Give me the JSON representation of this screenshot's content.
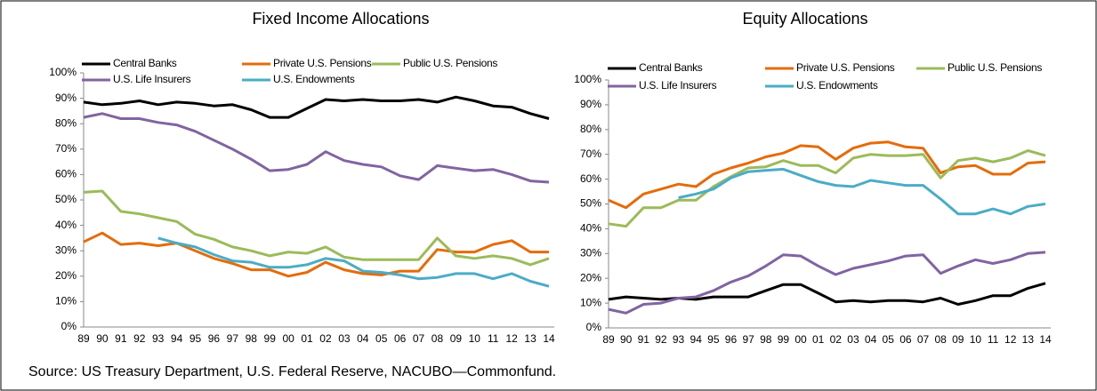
{
  "chart_data": [
    {
      "type": "line",
      "title": "Fixed Income Allocations",
      "categories": [
        "89",
        "90",
        "91",
        "92",
        "93",
        "94",
        "95",
        "96",
        "97",
        "98",
        "99",
        "00",
        "01",
        "02",
        "03",
        "04",
        "05",
        "06",
        "07",
        "08",
        "09",
        "10",
        "11",
        "12",
        "13",
        "14"
      ],
      "ylim": [
        0,
        100
      ],
      "yticks": [
        {
          "value": 0,
          "label": "0%"
        },
        {
          "value": 10,
          "label": "10%"
        },
        {
          "value": 20,
          "label": "20%"
        },
        {
          "value": 30,
          "label": "30%"
        },
        {
          "value": 40,
          "label": "40%"
        },
        {
          "value": 50,
          "label": "50%"
        },
        {
          "value": 60,
          "label": "60%"
        },
        {
          "value": 70,
          "label": "70%"
        },
        {
          "value": 80,
          "label": "80%"
        },
        {
          "value": 90,
          "label": "90%"
        },
        {
          "value": 100,
          "label": "100%"
        }
      ],
      "series": [
        {
          "name": "Central Banks",
          "color": "#000000",
          "values": [
            88.5,
            87.5,
            88,
            89,
            87.5,
            88.5,
            88,
            87,
            87.5,
            85.5,
            82.5,
            82.5,
            86,
            89.5,
            89,
            89.5,
            89,
            89,
            89.5,
            88.5,
            90.5,
            89,
            87,
            86.5,
            84,
            82
          ]
        },
        {
          "name": "Private U.S. Pensions",
          "color": "#e46c0a",
          "values": [
            33.5,
            37,
            32.5,
            33,
            32,
            33,
            30,
            27,
            25,
            22.5,
            22.5,
            20,
            21.5,
            25.5,
            22.5,
            21,
            20.5,
            22,
            22,
            30.5,
            29.5,
            29.5,
            32.5,
            34,
            29.5,
            29.5
          ]
        },
        {
          "name": "Public U.S. Pensions",
          "color": "#9bbb59",
          "values": [
            53,
            53.5,
            45.5,
            44.5,
            43,
            41.5,
            36.5,
            34.5,
            31.5,
            30,
            28,
            29.5,
            29,
            31.5,
            27.5,
            26.5,
            26.5,
            26.5,
            26.5,
            35,
            28,
            27,
            28,
            27,
            24.5,
            27
          ]
        },
        {
          "name": "U.S. Life Insurers",
          "color": "#8064a2",
          "values": [
            82.5,
            84,
            82,
            82,
            80.5,
            79.5,
            77,
            73.5,
            70,
            66,
            61.5,
            62,
            64,
            69,
            65.5,
            64,
            63,
            59.5,
            58,
            63.5,
            62.5,
            61.5,
            62,
            60,
            57.5,
            57
          ]
        },
        {
          "name": "U.S. Endowments",
          "color": "#4bacc6",
          "values": [
            null,
            null,
            null,
            null,
            35,
            33,
            31.5,
            28.5,
            26,
            25.5,
            23.5,
            23.5,
            24.5,
            27,
            26,
            22,
            21.5,
            20.5,
            19,
            19.5,
            21,
            21,
            19,
            21,
            18,
            16
          ]
        }
      ]
    },
    {
      "type": "line",
      "title": "Equity Allocations",
      "categories": [
        "89",
        "90",
        "91",
        "92",
        "93",
        "94",
        "95",
        "96",
        "97",
        "98",
        "99",
        "00",
        "01",
        "02",
        "03",
        "04",
        "05",
        "06",
        "07",
        "08",
        "09",
        "10",
        "11",
        "12",
        "13",
        "14"
      ],
      "ylim": [
        0,
        100
      ],
      "yticks": [
        {
          "value": 0,
          "label": "0%"
        },
        {
          "value": 10,
          "label": "10%"
        },
        {
          "value": 20,
          "label": "20%"
        },
        {
          "value": 30,
          "label": "30%"
        },
        {
          "value": 40,
          "label": "40%"
        },
        {
          "value": 50,
          "label": "50%"
        },
        {
          "value": 60,
          "label": "60%"
        },
        {
          "value": 70,
          "label": "70%"
        },
        {
          "value": 80,
          "label": "80%"
        },
        {
          "value": 90,
          "label": "90%"
        },
        {
          "value": 100,
          "label": "100%"
        }
      ],
      "series": [
        {
          "name": "Central Banks",
          "color": "#000000",
          "values": [
            11.5,
            12.5,
            12,
            11.5,
            12,
            11.5,
            12.5,
            12.5,
            12.5,
            15,
            17.5,
            17.5,
            14,
            10.5,
            11,
            10.5,
            11,
            11,
            10.5,
            12,
            9.5,
            11,
            13,
            13,
            16,
            18
          ]
        },
        {
          "name": "Private U.S. Pensions",
          "color": "#e46c0a",
          "values": [
            51.5,
            48.5,
            54,
            56,
            58,
            57,
            62,
            64.5,
            66.5,
            69,
            70.5,
            73.5,
            73,
            68,
            72.5,
            74.5,
            75,
            73,
            72.5,
            62.5,
            65,
            65.5,
            62,
            62,
            66.5,
            67
          ]
        },
        {
          "name": "Public U.S. Pensions",
          "color": "#9bbb59",
          "values": [
            42,
            41,
            48.5,
            48.5,
            51.5,
            51.5,
            57,
            61,
            64.5,
            65,
            67.5,
            65.5,
            65.5,
            62.5,
            68.5,
            70,
            69.5,
            69.5,
            70,
            60.5,
            67.5,
            68.5,
            67,
            68.5,
            71.5,
            69.5
          ]
        },
        {
          "name": "U.S. Life Insurers",
          "color": "#8064a2",
          "values": [
            7.5,
            6,
            9.5,
            10,
            12,
            12.5,
            15,
            18.5,
            21,
            25,
            29.5,
            29,
            25,
            21.5,
            24,
            25.5,
            27,
            29,
            29.5,
            22,
            25,
            27.5,
            26,
            27.5,
            30,
            30.5
          ]
        },
        {
          "name": "U.S. Endowments",
          "color": "#4bacc6",
          "values": [
            null,
            null,
            null,
            null,
            52.5,
            54,
            56,
            60.5,
            63,
            63.5,
            64,
            61.5,
            59,
            57.5,
            57,
            59.5,
            58.5,
            57.5,
            57.5,
            52,
            46,
            46,
            48,
            46,
            49,
            50
          ]
        }
      ]
    }
  ],
  "source": "Source: US Treasury Department, U.S. Federal Reserve, NACUBO—Commonfund."
}
